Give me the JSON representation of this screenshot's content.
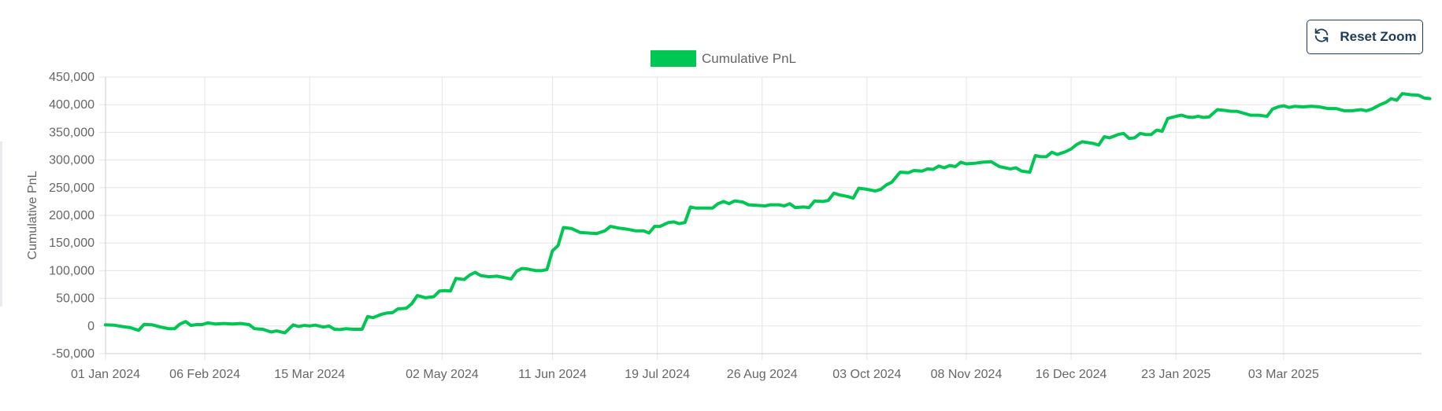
{
  "toolbar": {
    "reset_zoom_label": "Reset Zoom",
    "reset_icon": "refresh-icon"
  },
  "colors": {
    "series": "#00c653",
    "grid": "#e5e5e5",
    "button_border": "#1f3b5a"
  },
  "chart_data": {
    "type": "line",
    "legend": {
      "position": "top-center",
      "entries": [
        "Cumulative PnL"
      ]
    },
    "xlabel": "",
    "ylabel": "Cumulative PnL",
    "ylim": [
      -50000,
      450000
    ],
    "y_ticks": [
      "450,000",
      "400,000",
      "350,000",
      "300,000",
      "250,000",
      "200,000",
      "150,000",
      "100,000",
      "50,000",
      "0",
      "-50,000"
    ],
    "y_tick_values": [
      450000,
      400000,
      350000,
      300000,
      250000,
      200000,
      150000,
      100000,
      50000,
      0,
      -50000
    ],
    "x_range": [
      "2024-01-01",
      "2025-04-22"
    ],
    "x_ticks": [
      {
        "date": "2024-01-01",
        "label": "01 Jan 2024"
      },
      {
        "date": "2024-02-06",
        "label": "06 Feb 2024"
      },
      {
        "date": "2024-03-15",
        "label": "15 Mar 2024"
      },
      {
        "date": "2024-05-02",
        "label": "02 May 2024"
      },
      {
        "date": "2024-06-11",
        "label": "11 Jun 2024"
      },
      {
        "date": "2024-07-19",
        "label": "19 Jul 2024"
      },
      {
        "date": "2024-08-26",
        "label": "26 Aug 2024"
      },
      {
        "date": "2024-10-03",
        "label": "03 Oct 2024"
      },
      {
        "date": "2024-11-08",
        "label": "08 Nov 2024"
      },
      {
        "date": "2024-12-16",
        "label": "16 Dec 2024"
      },
      {
        "date": "2025-01-23",
        "label": "23 Jan 2025"
      },
      {
        "date": "2025-03-03",
        "label": "03 Mar 2025"
      }
    ],
    "grid": true,
    "series": [
      {
        "name": "Cumulative PnL",
        "points": [
          [
            "2024-01-01",
            2000
          ],
          [
            "2024-01-04",
            1500
          ],
          [
            "2024-01-07",
            -1000
          ],
          [
            "2024-01-10",
            -3000
          ],
          [
            "2024-01-13",
            -8000
          ],
          [
            "2024-01-15",
            3000
          ],
          [
            "2024-01-18",
            2000
          ],
          [
            "2024-01-21",
            -2000
          ],
          [
            "2024-01-24",
            -5000
          ],
          [
            "2024-01-26",
            -5000
          ],
          [
            "2024-01-28",
            3500
          ],
          [
            "2024-01-30",
            8000
          ],
          [
            "2024-02-01",
            1000
          ],
          [
            "2024-02-03",
            2500
          ],
          [
            "2024-02-05",
            2500
          ],
          [
            "2024-02-07",
            5500
          ],
          [
            "2024-02-10",
            3500
          ],
          [
            "2024-02-13",
            4500
          ],
          [
            "2024-02-16",
            3500
          ],
          [
            "2024-02-19",
            4500
          ],
          [
            "2024-02-22",
            2500
          ],
          [
            "2024-02-24",
            -5000
          ],
          [
            "2024-02-27",
            -6000
          ],
          [
            "2024-03-01",
            -11000
          ],
          [
            "2024-03-03",
            -9000
          ],
          [
            "2024-03-06",
            -12500
          ],
          [
            "2024-03-09",
            2000
          ],
          [
            "2024-03-11",
            -1000
          ],
          [
            "2024-03-13",
            1000
          ],
          [
            "2024-03-15",
            0
          ],
          [
            "2024-03-17",
            1500
          ],
          [
            "2024-03-20",
            -2000
          ],
          [
            "2024-03-22",
            0
          ],
          [
            "2024-03-24",
            -6000
          ],
          [
            "2024-03-26",
            -6500
          ],
          [
            "2024-03-28",
            -5000
          ],
          [
            "2024-03-31",
            -6000
          ],
          [
            "2024-04-03",
            -6000
          ],
          [
            "2024-04-05",
            17000
          ],
          [
            "2024-04-07",
            15000
          ],
          [
            "2024-04-10",
            21000
          ],
          [
            "2024-04-12",
            23500
          ],
          [
            "2024-04-14",
            24000
          ],
          [
            "2024-04-16",
            31000
          ],
          [
            "2024-04-19",
            32000
          ],
          [
            "2024-04-21",
            40000
          ],
          [
            "2024-04-23",
            55000
          ],
          [
            "2024-04-26",
            51000
          ],
          [
            "2024-04-29",
            53000
          ],
          [
            "2024-05-01",
            63000
          ],
          [
            "2024-05-03",
            64000
          ],
          [
            "2024-05-05",
            63000
          ],
          [
            "2024-05-07",
            86000
          ],
          [
            "2024-05-10",
            84000
          ],
          [
            "2024-05-12",
            92000
          ],
          [
            "2024-05-14",
            97000
          ],
          [
            "2024-05-16",
            91000
          ],
          [
            "2024-05-19",
            89000
          ],
          [
            "2024-05-22",
            90000
          ],
          [
            "2024-05-25",
            87000
          ],
          [
            "2024-05-27",
            85000
          ],
          [
            "2024-05-29",
            99000
          ],
          [
            "2024-05-31",
            104000
          ],
          [
            "2024-06-02",
            103000
          ],
          [
            "2024-06-05",
            100000
          ],
          [
            "2024-06-07",
            100000
          ],
          [
            "2024-06-09",
            102000
          ],
          [
            "2024-06-11",
            136000
          ],
          [
            "2024-06-13",
            145000
          ],
          [
            "2024-06-15",
            178000
          ],
          [
            "2024-06-18",
            176000
          ],
          [
            "2024-06-21",
            169000
          ],
          [
            "2024-06-24",
            168000
          ],
          [
            "2024-06-27",
            167000
          ],
          [
            "2024-06-30",
            172000
          ],
          [
            "2024-07-02",
            180000
          ],
          [
            "2024-07-05",
            177000
          ],
          [
            "2024-07-08",
            175000
          ],
          [
            "2024-07-11",
            172000
          ],
          [
            "2024-07-14",
            172000
          ],
          [
            "2024-07-16",
            168000
          ],
          [
            "2024-07-18",
            180000
          ],
          [
            "2024-07-20",
            180000
          ],
          [
            "2024-07-23",
            187000
          ],
          [
            "2024-07-25",
            188000
          ],
          [
            "2024-07-27",
            185000
          ],
          [
            "2024-07-29",
            187000
          ],
          [
            "2024-07-31",
            215000
          ],
          [
            "2024-08-02",
            213000
          ],
          [
            "2024-08-05",
            213000
          ],
          [
            "2024-08-08",
            213000
          ],
          [
            "2024-08-10",
            221000
          ],
          [
            "2024-08-12",
            225000
          ],
          [
            "2024-08-14",
            221000
          ],
          [
            "2024-08-16",
            226000
          ],
          [
            "2024-08-19",
            224000
          ],
          [
            "2024-08-21",
            219000
          ],
          [
            "2024-08-24",
            218000
          ],
          [
            "2024-08-27",
            217000
          ],
          [
            "2024-08-29",
            219000
          ],
          [
            "2024-09-01",
            219000
          ],
          [
            "2024-09-03",
            217000
          ],
          [
            "2024-09-05",
            221000
          ],
          [
            "2024-09-07",
            214000
          ],
          [
            "2024-09-10",
            215000
          ],
          [
            "2024-09-12",
            214000
          ],
          [
            "2024-09-14",
            226000
          ],
          [
            "2024-09-17",
            225000
          ],
          [
            "2024-09-19",
            227000
          ],
          [
            "2024-09-21",
            240000
          ],
          [
            "2024-09-23",
            237000
          ],
          [
            "2024-09-26",
            234000
          ],
          [
            "2024-09-28",
            231000
          ],
          [
            "2024-09-30",
            249000
          ],
          [
            "2024-10-03",
            247000
          ],
          [
            "2024-10-06",
            244000
          ],
          [
            "2024-10-08",
            247000
          ],
          [
            "2024-10-10",
            255000
          ],
          [
            "2024-10-12",
            260000
          ],
          [
            "2024-10-15",
            278000
          ],
          [
            "2024-10-18",
            277000
          ],
          [
            "2024-10-20",
            281000
          ],
          [
            "2024-10-23",
            280000
          ],
          [
            "2024-10-25",
            284000
          ],
          [
            "2024-10-27",
            283000
          ],
          [
            "2024-10-29",
            289000
          ],
          [
            "2024-10-31",
            286000
          ],
          [
            "2024-11-02",
            290000
          ],
          [
            "2024-11-04",
            288000
          ],
          [
            "2024-11-06",
            296000
          ],
          [
            "2024-11-08",
            293000
          ],
          [
            "2024-11-11",
            294000
          ],
          [
            "2024-11-14",
            296000
          ],
          [
            "2024-11-17",
            297000
          ],
          [
            "2024-11-20",
            288000
          ],
          [
            "2024-11-22",
            286000
          ],
          [
            "2024-11-24",
            284000
          ],
          [
            "2024-11-26",
            286000
          ],
          [
            "2024-11-28",
            280000
          ],
          [
            "2024-12-01",
            278000
          ],
          [
            "2024-12-03",
            308000
          ],
          [
            "2024-12-05",
            306000
          ],
          [
            "2024-12-07",
            306000
          ],
          [
            "2024-12-09",
            314000
          ],
          [
            "2024-12-11",
            310000
          ],
          [
            "2024-12-14",
            315000
          ],
          [
            "2024-12-16",
            320000
          ],
          [
            "2024-12-18",
            328000
          ],
          [
            "2024-12-20",
            333000
          ],
          [
            "2024-12-24",
            330000
          ],
          [
            "2024-12-26",
            327000
          ],
          [
            "2024-12-28",
            342000
          ],
          [
            "2024-12-30",
            340000
          ],
          [
            "2025-01-02",
            346000
          ],
          [
            "2025-01-04",
            348000
          ],
          [
            "2025-01-06",
            339000
          ],
          [
            "2025-01-08",
            340000
          ],
          [
            "2025-01-10",
            348000
          ],
          [
            "2025-01-12",
            346000
          ],
          [
            "2025-01-14",
            346000
          ],
          [
            "2025-01-16",
            354000
          ],
          [
            "2025-01-18",
            352000
          ],
          [
            "2025-01-20",
            375000
          ],
          [
            "2025-01-23",
            379000
          ],
          [
            "2025-01-25",
            381000
          ],
          [
            "2025-01-27",
            378000
          ],
          [
            "2025-01-29",
            377000
          ],
          [
            "2025-01-31",
            379000
          ],
          [
            "2025-02-02",
            377000
          ],
          [
            "2025-02-04",
            378000
          ],
          [
            "2025-02-07",
            391000
          ],
          [
            "2025-02-09",
            390000
          ],
          [
            "2025-02-12",
            388000
          ],
          [
            "2025-02-14",
            388000
          ],
          [
            "2025-02-17",
            384000
          ],
          [
            "2025-02-19",
            381000
          ],
          [
            "2025-02-22",
            381000
          ],
          [
            "2025-02-25",
            379000
          ],
          [
            "2025-02-27",
            392000
          ],
          [
            "2025-03-01",
            396000
          ],
          [
            "2025-03-03",
            398000
          ],
          [
            "2025-03-05",
            395000
          ],
          [
            "2025-03-07",
            397000
          ],
          [
            "2025-03-10",
            396000
          ],
          [
            "2025-03-13",
            397000
          ],
          [
            "2025-03-16",
            396000
          ],
          [
            "2025-03-19",
            393000
          ],
          [
            "2025-03-22",
            393000
          ],
          [
            "2025-03-25",
            389000
          ],
          [
            "2025-03-28",
            389000
          ],
          [
            "2025-03-31",
            391000
          ],
          [
            "2025-04-02",
            389000
          ],
          [
            "2025-04-04",
            392000
          ],
          [
            "2025-04-07",
            400000
          ],
          [
            "2025-04-09",
            404000
          ],
          [
            "2025-04-11",
            411000
          ],
          [
            "2025-04-13",
            408000
          ],
          [
            "2025-04-15",
            420000
          ],
          [
            "2025-04-18",
            418000
          ],
          [
            "2025-04-21",
            417000
          ],
          [
            "2025-04-23",
            412000
          ],
          [
            "2025-04-25",
            411000
          ]
        ]
      }
    ]
  }
}
